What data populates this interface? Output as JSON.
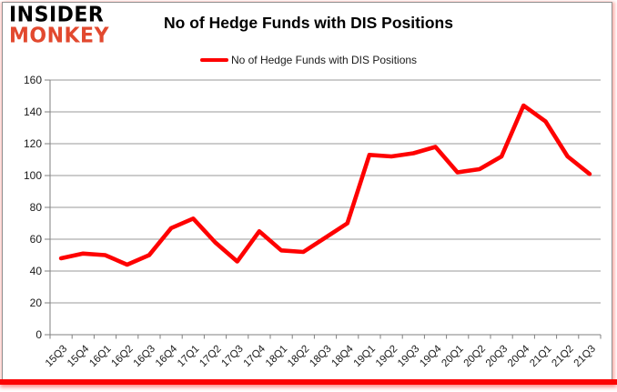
{
  "branding": {
    "line1": "INSIDER",
    "line2": "MONKEY",
    "logo_red": "#e2492f"
  },
  "header": {
    "title": "No of Hedge Funds with DIS Positions"
  },
  "legend": {
    "label": "No of Hedge Funds with DIS Positions"
  },
  "colors": {
    "series_red": "#fe0101",
    "gridline": "#9a9a9a",
    "axis": "#7f7f7f",
    "tick_text": "#1a1a1a",
    "bottom_bar": "#fc0303"
  },
  "chart_data": {
    "type": "line",
    "title": "No of Hedge Funds with DIS Positions",
    "categories": [
      "15Q3",
      "15Q4",
      "16Q1",
      "16Q2",
      "16Q3",
      "16Q4",
      "17Q1",
      "17Q2",
      "17Q3",
      "17Q4",
      "18Q1",
      "18Q2",
      "18Q3",
      "18Q4",
      "19Q1",
      "19Q2",
      "19Q3",
      "19Q4",
      "20Q1",
      "20Q2",
      "20Q3",
      "20Q4",
      "21Q1",
      "21Q2",
      "21Q3"
    ],
    "series": [
      {
        "name": "No of Hedge Funds with DIS Positions",
        "color": "#fe0101",
        "values": [
          48,
          51,
          50,
          44,
          50,
          67,
          73,
          58,
          46,
          65,
          53,
          52,
          61,
          70,
          113,
          112,
          114,
          118,
          102,
          104,
          112,
          144,
          134,
          112,
          101
        ]
      }
    ],
    "xlabel": "",
    "ylabel": "",
    "ylim": [
      0,
      160
    ],
    "ytick_step": 20,
    "grid": true,
    "legend_position": "top-center",
    "x_label_rotation": -45
  }
}
